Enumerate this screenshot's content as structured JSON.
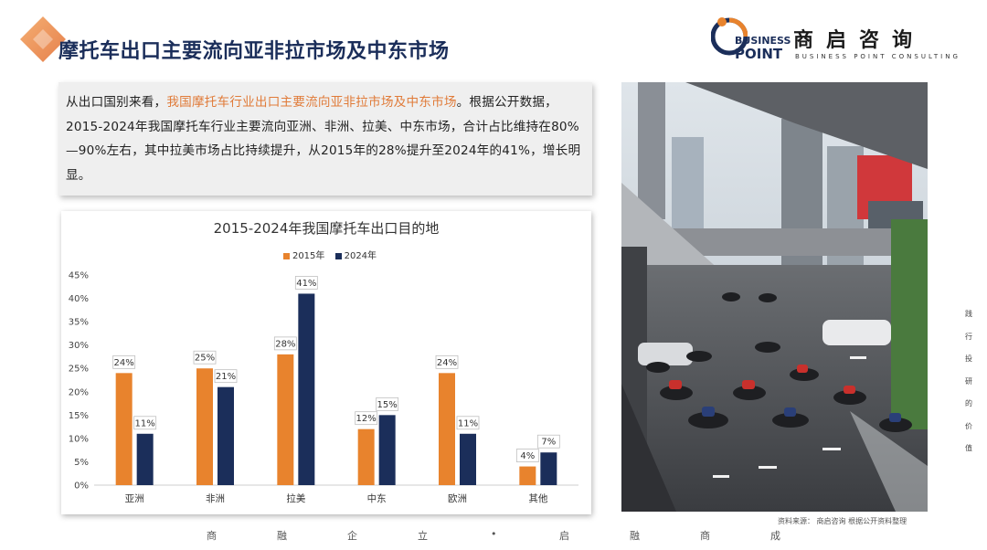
{
  "header": {
    "title": "摩托车出口主要流向亚非拉市场及中东市场"
  },
  "logo": {
    "name_cn": "商启咨询",
    "name_en_top": "BUSINESS",
    "name_en_bottom": "POINT",
    "tagline": "BUSINESS POINT CONSULTING",
    "colors": {
      "orange": "#e8832d",
      "navy": "#1b2e5a"
    }
  },
  "summary": {
    "before": "从出口国别来看，",
    "highlight": "我国摩托车行业出口主要流向亚非拉市场及中东市场",
    "after": "。根据公开数据，2015-2024年我国摩托车行业主要流向亚洲、非洲、拉美、中东市场，合计占比维持在80%—90%左右，其中拉美市场占比持续提升，从2015年的28%提升至2024年的41%，增长明显。"
  },
  "chart_data": {
    "type": "bar",
    "title": "2015-2024年我国摩托车出口目的地",
    "categories": [
      "亚洲",
      "非洲",
      "拉美",
      "中东",
      "欧洲",
      "其他"
    ],
    "series": [
      {
        "name": "2015年",
        "values": [
          24,
          25,
          28,
          12,
          24,
          4
        ],
        "color": "#e8832d"
      },
      {
        "name": "2024年",
        "values": [
          11,
          21,
          41,
          15,
          11,
          7
        ],
        "color": "#1b2e5a"
      }
    ],
    "ylim": [
      0,
      45
    ],
    "yticks": [
      "0%",
      "5%",
      "10%",
      "15%",
      "20%",
      "25%",
      "30%",
      "35%",
      "40%",
      "45%"
    ],
    "value_suffix": "%",
    "legend_position": "top-center",
    "grid": false
  },
  "image": {
    "subject": "city-street-motorcycles-photo"
  },
  "source_note": "资料来源： 商启咨询 根据公开资料整理",
  "side_text": [
    "践",
    "行",
    "投",
    "研",
    "的",
    "价",
    "值"
  ],
  "footer": [
    "商",
    "融",
    "企",
    "立",
    "•",
    "启",
    "融",
    "商",
    "成"
  ]
}
